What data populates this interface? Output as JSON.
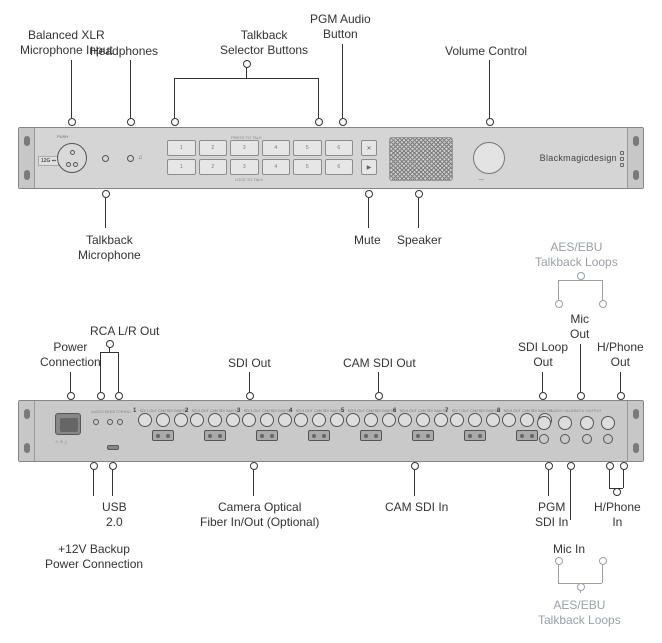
{
  "labels": {
    "xlr": "Balanced XLR\nMicrophone Input",
    "headphones": "Headphones",
    "talkback_selector": "Talkback\nSelector Buttons",
    "pgm_audio": "PGM Audio\nButton",
    "volume": "Volume Control",
    "talkback_mic": "Talkback\nMicrophone",
    "mute": "Mute",
    "speaker": "Speaker",
    "aes_top": "AES/EBU\nTalkback Loops",
    "power_conn": "Power\nConnection",
    "rca_out": "RCA L/R Out",
    "sdi_out": "SDI Out",
    "cam_sdi_out": "CAM SDI Out",
    "sdi_loop_out": "SDI Loop\nOut",
    "mic_out": "Mic\nOut",
    "hphone_out": "H/Phone\nOut",
    "usb": "USB\n2.0",
    "backup_power": "+12V Backup\nPower Connection",
    "cam_fiber": "Camera Optical\nFiber In/Out (Optional)",
    "cam_sdi_in": "CAM SDI In",
    "pgm_sdi_in": "PGM\nSDI In",
    "mic_in": "Mic In",
    "hphone_in": "H/Phone\nIn",
    "aes_bottom": "AES/EBU\nTalkback Loops"
  },
  "front": {
    "brand": "Blackmagicdesign",
    "model": "12G ⎓",
    "press_to_talk": "PRESS TO TALK",
    "lock_to_talk": "LOCK TO TALK",
    "buttons_top": [
      "1",
      "2",
      "3",
      "4",
      "5",
      "6"
    ],
    "buttons_bottom": [
      "1",
      "2",
      "3",
      "4",
      "5",
      "6"
    ],
    "mute_glyph": "✕",
    "pgm_glyph": "▶"
  },
  "rear": {
    "channels": [
      1,
      2,
      3,
      4,
      5,
      6,
      7,
      8
    ],
    "ch_block_left_start": 118,
    "ch_block_spacing": 52
  },
  "colors": {
    "panel": "#d5d5d5",
    "panel_rear": "#c9c9c9",
    "stroke": "#555555",
    "text": "#333333",
    "grey_text": "#9aa0a6"
  }
}
